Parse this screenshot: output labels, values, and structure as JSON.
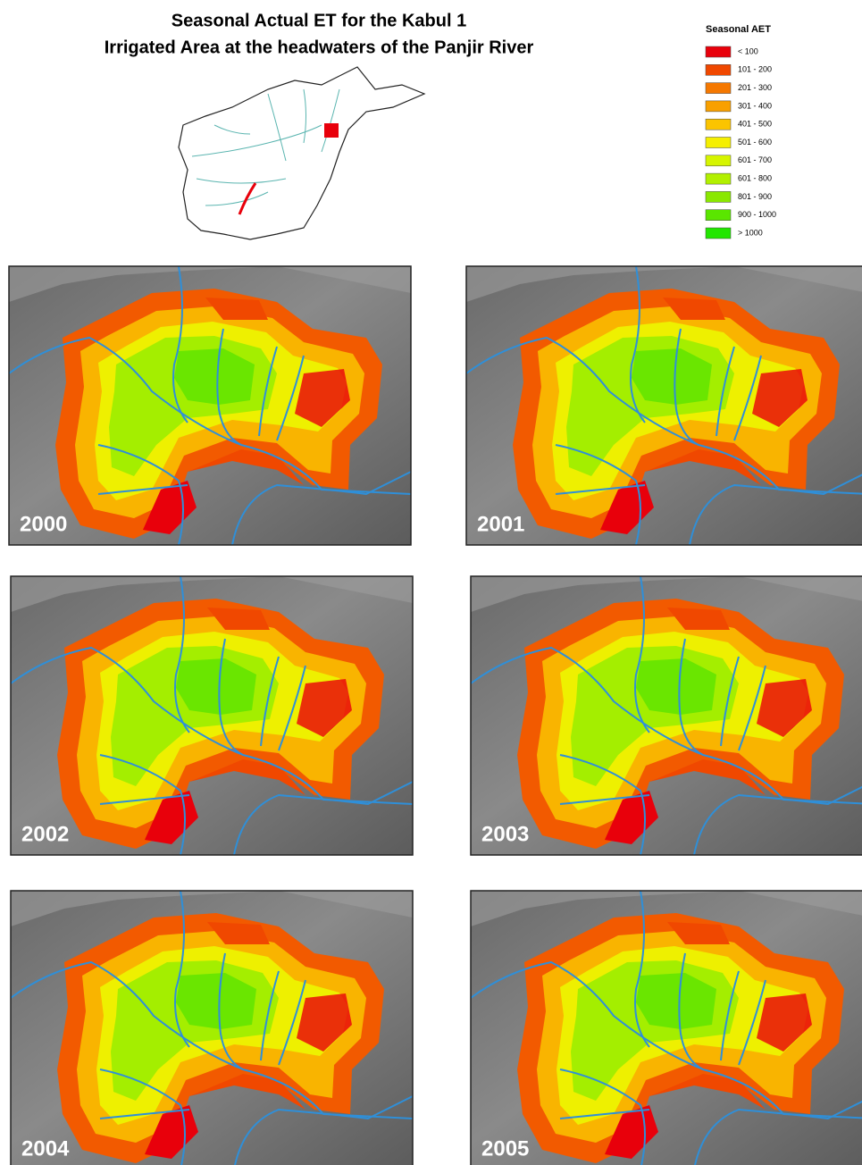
{
  "header": {
    "title_lines": [
      "Seasonal Actual ET for the Kabul 1",
      "Irrigated Area at the headwaters of the Panjir River"
    ]
  },
  "legend": {
    "title": "Seasonal AET",
    "items": [
      {
        "label": "< 100",
        "color": "#e8000b"
      },
      {
        "label": "101 - 200",
        "color": "#f04800"
      },
      {
        "label": "201 - 300",
        "color": "#f57800"
      },
      {
        "label": "301 - 400",
        "color": "#f8a000"
      },
      {
        "label": "401 - 500",
        "color": "#fbc400"
      },
      {
        "label": "501 - 600",
        "color": "#f5ef00"
      },
      {
        "label": "601 - 700",
        "color": "#d6f500"
      },
      {
        "label": "601 - 800",
        "color": "#b2f000"
      },
      {
        "label": "801 - 900",
        "color": "#8ae800"
      },
      {
        "label": "900 - 1000",
        "color": "#5ae600"
      },
      {
        "label": "> 1000",
        "color": "#22e600"
      }
    ]
  },
  "maps": [
    {
      "year": "2000"
    },
    {
      "year": "2001"
    },
    {
      "year": "2002"
    },
    {
      "year": "2003"
    },
    {
      "year": "2004"
    },
    {
      "year": "2005"
    }
  ]
}
